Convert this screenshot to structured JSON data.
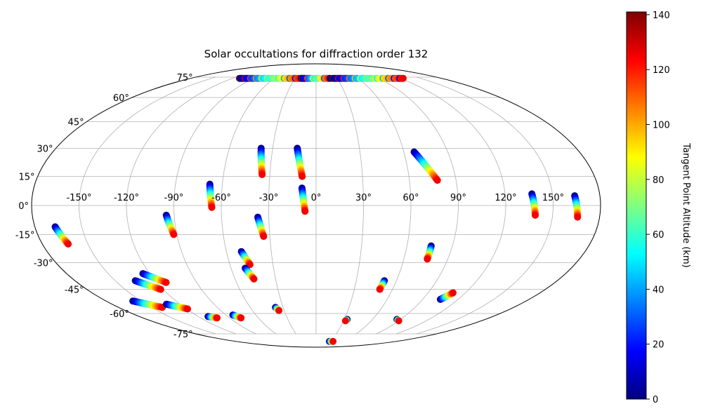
{
  "chart_data": {
    "type": "scatter",
    "projection": "mollweide",
    "title": "Solar occultations for diffraction order 132",
    "x_tick_labels": [
      "-150°",
      "-120°",
      "-90°",
      "-60°",
      "-30°",
      "0°",
      "30°",
      "60°",
      "90°",
      "120°",
      "150°"
    ],
    "y_tick_labels": [
      "-75°",
      "-60°",
      "-45°",
      "-30°",
      "-15°",
      "0°",
      "15°",
      "30°",
      "45°",
      "60°",
      "75°"
    ],
    "grid": true,
    "colorbar": {
      "label": "Tangent Point Altitude (km)",
      "colormap": "jet",
      "range": [
        0,
        141
      ],
      "ticks": [
        "0",
        "20",
        "40",
        "60",
        "80",
        "100",
        "120",
        "140"
      ],
      "placement": "right"
    },
    "colormap_stops": [
      "#000080",
      "#0000ff",
      "#0080ff",
      "#00ffff",
      "#80ff80",
      "#ffff00",
      "#ff8000",
      "#ff0000",
      "#800000"
    ],
    "tracks": [
      {
        "lon": [
          -167,
          -163
        ],
        "lat": [
          -11,
          -20
        ]
      },
      {
        "lon": [
          -95,
          -92
        ],
        "lat": [
          -5,
          -15
        ]
      },
      {
        "lon": [
          -68,
          -66
        ],
        "lat": [
          11,
          -1
        ]
      },
      {
        "lon": [
          -38,
          -35
        ],
        "lat": [
          30,
          16
        ]
      },
      {
        "lon": [
          -37,
          -34
        ],
        "lat": [
          -6,
          -16
        ]
      },
      {
        "lon": [
          -13,
          -9
        ],
        "lat": [
          30,
          15
        ]
      },
      {
        "lon": [
          -9,
          -7
        ],
        "lat": [
          9,
          -3
        ]
      },
      {
        "lon": [
          67,
          78
        ],
        "lat": [
          28,
          13
        ]
      },
      {
        "lon": [
          137,
          139
        ],
        "lat": [
          6,
          -5
        ]
      },
      {
        "lon": [
          164,
          166
        ],
        "lat": [
          5,
          -6
        ]
      },
      {
        "lon": [
          -50,
          -46
        ],
        "lat": [
          -24,
          -31
        ]
      },
      {
        "lon": [
          -50,
          -46
        ],
        "lat": [
          -33,
          -39
        ]
      },
      {
        "lon": [
          76,
          76
        ],
        "lat": [
          -21,
          -28
        ]
      },
      {
        "lon": [
          51,
          50
        ],
        "lat": [
          -40,
          -45
        ]
      },
      {
        "lon": [
          -135,
          -122
        ],
        "lat": [
          -40,
          -45
        ]
      },
      {
        "lon": [
          -125,
          -113
        ],
        "lat": [
          -36,
          -41
        ]
      },
      {
        "lon": [
          -157,
          -140
        ],
        "lat": [
          -52,
          -56
        ]
      },
      {
        "lon": [
          -132,
          -119
        ],
        "lat": [
          -54,
          -57
        ]
      },
      {
        "lon": [
          -110,
          -103
        ],
        "lat": [
          -62,
          -63
        ]
      },
      {
        "lon": [
          -83,
          -78
        ],
        "lat": [
          -61,
          -63
        ]
      },
      {
        "lon": [
          -37,
          -35
        ],
        "lat": [
          -56,
          -58
        ]
      },
      {
        "lon": [
          33,
          32
        ],
        "lat": [
          -64,
          -65
        ]
      },
      {
        "lon": [
          105,
          110
        ],
        "lat": [
          -51,
          -47
        ]
      },
      {
        "lon": [
          86,
          90
        ],
        "lat": [
          -64,
          -65
        ]
      },
      {
        "lon": [
          -110,
          -20
        ],
        "lat": [
          74,
          74
        ]
      },
      {
        "lon": [
          -20,
          20
        ],
        "lat": [
          74,
          74
        ]
      },
      {
        "lon": [
          24,
          125
        ],
        "lat": [
          74,
          74
        ]
      },
      {
        "lon": [
          30,
          38
        ],
        "lat": [
          -82,
          -82
        ]
      }
    ]
  }
}
